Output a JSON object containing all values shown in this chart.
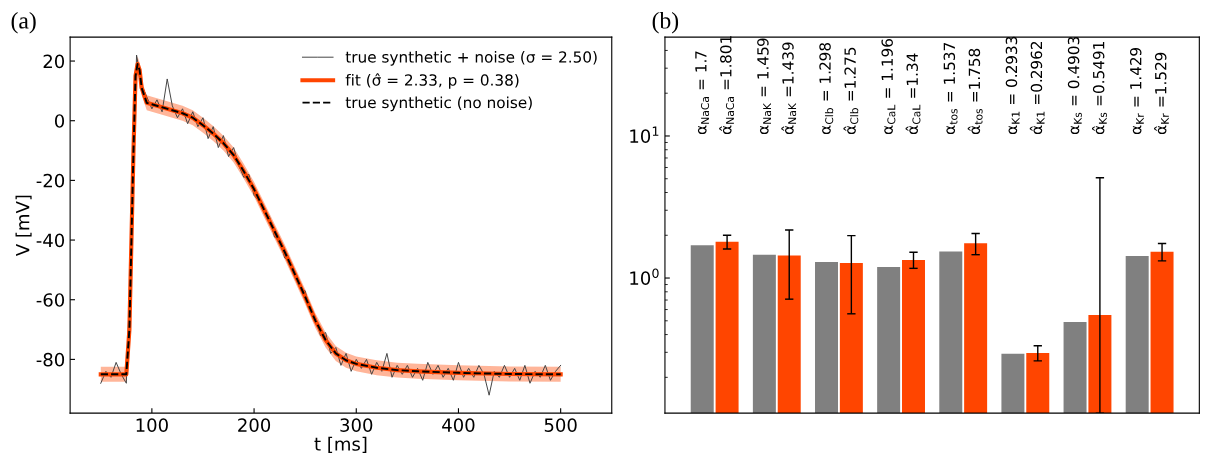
{
  "chart_data": [
    {
      "type": "line",
      "title": "(a)",
      "xlabel": "t [ms]",
      "ylabel": "V [mV]",
      "xlim": [
        20,
        550
      ],
      "xticks": [
        100,
        200,
        300,
        400,
        500
      ],
      "ylim": [
        -98,
        28
      ],
      "yticks": [
        -80,
        -60,
        -40,
        -20,
        0,
        20
      ],
      "legend": "top right",
      "grid": false,
      "series": [
        {
          "name": "true synthetic + noise (σ = 2.50)",
          "color": "#404040",
          "line_style": "solid",
          "x": [
            50,
            55,
            60,
            65,
            70,
            75,
            80,
            85,
            90,
            95,
            100,
            105,
            110,
            115,
            120,
            125,
            130,
            135,
            140,
            145,
            150,
            155,
            160,
            165,
            170,
            175,
            180,
            185,
            190,
            195,
            200,
            205,
            210,
            215,
            220,
            225,
            230,
            235,
            240,
            245,
            250,
            255,
            260,
            265,
            270,
            275,
            280,
            285,
            290,
            295,
            300,
            305,
            310,
            315,
            320,
            325,
            330,
            335,
            340,
            345,
            350,
            355,
            360,
            365,
            370,
            375,
            380,
            385,
            390,
            395,
            400,
            405,
            410,
            415,
            420,
            425,
            430,
            435,
            440,
            445,
            450,
            455,
            460,
            465,
            470,
            475,
            480,
            485,
            490,
            495,
            500
          ],
          "values": [
            -88,
            -84,
            -86,
            -81,
            -85,
            -88,
            -38,
            22,
            12,
            8,
            4,
            7,
            3,
            14,
            5,
            1,
            4,
            -1,
            3,
            -2,
            1,
            -6,
            -2,
            -9,
            -5,
            -12,
            -9,
            -15,
            -19,
            -18,
            -25,
            -27,
            -31,
            -32,
            -39,
            -40,
            -46,
            -47,
            -51,
            -56,
            -57,
            -64,
            -66,
            -72,
            -71,
            -78,
            -76,
            -82,
            -78,
            -84,
            -80,
            -83,
            -80,
            -85,
            -81,
            -84,
            -78,
            -86,
            -82,
            -85,
            -82,
            -86,
            -83,
            -87,
            -81,
            -85,
            -82,
            -86,
            -83,
            -87,
            -81,
            -86,
            -83,
            -86,
            -82,
            -85,
            -92,
            -84,
            -86,
            -82,
            -86,
            -83,
            -87,
            -82,
            -88,
            -84,
            -86,
            -82,
            -87,
            -84,
            -82
          ]
        },
        {
          "name": "fit (σ̂ = 2.33, p = 0.38)",
          "color": "#ff4500",
          "line_style": "solid",
          "x": [
            50,
            75,
            78,
            80,
            82,
            84,
            86,
            88,
            90,
            95,
            100,
            110,
            120,
            130,
            140,
            150,
            160,
            170,
            180,
            190,
            200,
            210,
            220,
            230,
            240,
            250,
            260,
            270,
            280,
            290,
            300,
            320,
            340,
            360,
            400,
            450,
            500
          ],
          "values": [
            -85,
            -85,
            -70,
            -40,
            -10,
            15,
            19,
            17,
            11,
            6,
            5.5,
            4.5,
            3.5,
            2.5,
            1,
            -1.5,
            -4.3,
            -7.5,
            -11.5,
            -17,
            -23,
            -30,
            -37,
            -44,
            -51.5,
            -59,
            -67,
            -73.5,
            -78,
            -80.3,
            -81.5,
            -82.8,
            -83.6,
            -84,
            -84.5,
            -84.9,
            -85
          ],
          "lower": [
            -87.5,
            -87.5,
            -72.5,
            -42.5,
            -12.5,
            12.5,
            16.5,
            14.5,
            8.5,
            3.5,
            3,
            2,
            1,
            0,
            -1.5,
            -4,
            -6.8,
            -10,
            -14,
            -19.5,
            -25.5,
            -32.5,
            -39.5,
            -46.5,
            -54,
            -61.5,
            -69.5,
            -76,
            -80.5,
            -82.8,
            -84,
            -85.3,
            -86.1,
            -86.5,
            -87,
            -87.4,
            -87.5
          ],
          "upper": [
            -82.5,
            -82.5,
            -67.5,
            -37.5,
            -7.5,
            17.5,
            21.5,
            19.5,
            13.5,
            8.5,
            8,
            7,
            6,
            5,
            3.5,
            1,
            -1.8,
            -5,
            -9,
            -14.5,
            -20.5,
            -27.5,
            -34.5,
            -41.5,
            -49,
            -56.5,
            -64.5,
            -71,
            -75.5,
            -77.8,
            -79,
            -80.3,
            -81.1,
            -81.5,
            -82,
            -82.4,
            -82.5
          ]
        },
        {
          "name": "true synthetic (no noise)",
          "color": "#000000",
          "line_style": "dashed",
          "x": [
            50,
            75,
            78,
            80,
            82,
            84,
            86,
            88,
            90,
            95,
            100,
            110,
            120,
            130,
            140,
            150,
            160,
            170,
            180,
            190,
            200,
            210,
            220,
            230,
            240,
            250,
            260,
            270,
            280,
            290,
            300,
            320,
            340,
            360,
            400,
            450,
            500
          ],
          "values": [
            -85,
            -85,
            -70,
            -40,
            -10,
            15,
            19,
            17,
            11,
            6,
            5.5,
            4.5,
            3.5,
            2.5,
            1,
            -1.5,
            -4.3,
            -7.5,
            -11.5,
            -17,
            -23,
            -30,
            -37,
            -44,
            -51.5,
            -59,
            -67,
            -73.5,
            -78,
            -80.3,
            -81.5,
            -82.8,
            -83.6,
            -84,
            -84.5,
            -84.9,
            -85
          ]
        }
      ]
    },
    {
      "type": "bar",
      "title": "(b)",
      "log": "y",
      "categories": [
        null,
        null,
        null,
        null,
        null,
        null,
        null,
        null
      ],
      "ylim": [
        0.112,
        49.6
      ],
      "yticks": [
        {
          "value": 1,
          "label": "10$^{0}$"
        },
        {
          "value": 10,
          "label": "10$^{1}$"
        }
      ],
      "tick_labels": "y",
      "grid": false,
      "legend": false,
      "annotations": [
        "α$_{NaCa}$ = 1.7",
        "α̂$_{NaCa}$ =1.801",
        "α$_{NaK}$ = 1.459",
        "α̂$_{NaK}$ =1.439",
        "α$_{Clb}$ = 1.298",
        "α̂$_{Clb}$ =1.275",
        "α$_{CaL}$ = 1.196",
        "α̂$_{CaL}$ =1.34",
        "α$_{tos}$ = 1.537",
        "α̂$_{tos}$ =1.758",
        "α$_{K1}$ = 0.2933",
        "α̂$_{K1}$ =0.2962",
        "α$_{Ks}$ = 0.4903",
        "α̂$_{Ks}$ =0.5491",
        "α$_{Kr}$ = 1.429",
        "α̂$_{Kr}$ =1.529"
      ],
      "series": [
        {
          "color": "#808080",
          "values": [
            1.7,
            1.459,
            1.298,
            1.196,
            1.537,
            0.2933,
            0.4903,
            1.429
          ]
        },
        {
          "color": "#ff4500",
          "values": [
            1.801,
            1.439,
            1.275,
            1.34,
            1.758,
            0.2962,
            0.5491,
            1.529
          ],
          "errors": [
            [
              1.6,
              2.0
            ],
            [
              0.71,
              2.18
            ],
            [
              0.56,
              1.99
            ],
            [
              1.17,
              1.52
            ],
            [
              1.46,
              2.06
            ],
            [
              0.261,
              0.334
            ],
            [
              0.112,
              5.08
            ],
            [
              1.32,
              1.75
            ]
          ]
        }
      ]
    }
  ]
}
